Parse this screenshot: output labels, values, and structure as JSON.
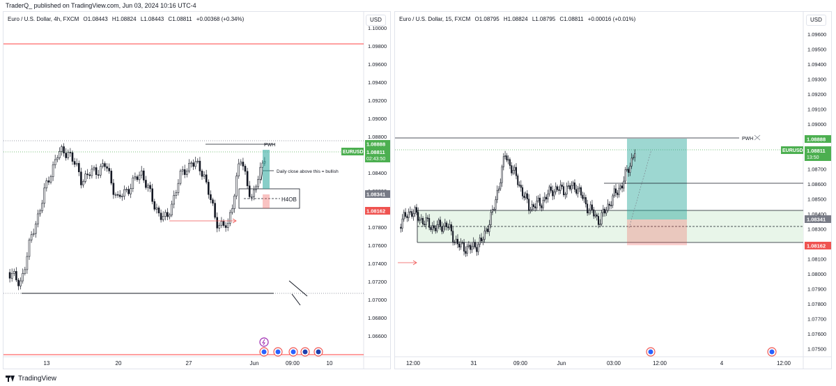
{
  "header": {
    "publisher_line": "TraderQ_ published on TradingView.com, Jun 03, 2024 10:16 UTC-4"
  },
  "footer": {
    "brand": "TradingView",
    "logo_icon": "tradingview-logo-icon"
  },
  "colors": {
    "up": "#26a69a",
    "down": "#ef5350",
    "candle": "#131722",
    "price_green": "#4caf50",
    "grey_label": "#787b86",
    "red_line": "#ff0000",
    "grid": "#e0e3eb",
    "box_fill": "#e8f5e9"
  },
  "left_chart": {
    "legend": {
      "symbol": "Euro / U.S. Dollar, 4h, FXCM",
      "open": "O1.08443",
      "high": "H1.08824",
      "low": "L1.08443",
      "close": "C1.08811",
      "change": "+0.00368 (+0.34%)"
    },
    "currency": "USD",
    "price_ticks": [
      "1.10000",
      "1.09800",
      "1.09600",
      "1.09400",
      "1.09200",
      "1.09000",
      "1.08800",
      "1.08600",
      "1.08400",
      "1.08200",
      "1.08000",
      "1.07800",
      "1.07600",
      "1.07400",
      "1.07200",
      "1.07000",
      "1.06800",
      "1.06600"
    ],
    "time_ticks": [
      "13",
      "20",
      "27",
      "Jun",
      "09:00",
      "10"
    ],
    "price_labels": {
      "pwh": "1.08888",
      "symbol_tag": "EURUSD",
      "current": "1.08811",
      "countdown": "02:43:50",
      "h4ob": "1.08341",
      "stop": "1.08162"
    },
    "annotations": {
      "pwh": "PWH",
      "daily_close": "Daily close above this = bullish",
      "h4ob": "H4OB"
    },
    "event_icons": [
      "lightning-icon",
      "us-flag-icon",
      "us-flag-icon",
      "us-flag-icon",
      "eu-flag-icon",
      "eu-flag-icon"
    ]
  },
  "right_chart": {
    "legend": {
      "symbol": "Euro / U.S. Dollar, 15, FXCM",
      "open": "O1.08795",
      "high": "H1.08824",
      "low": "L1.08795",
      "close": "C1.08811",
      "change": "+0.00016 (+0.01%)"
    },
    "currency": "USD",
    "price_ticks": [
      "1.09600",
      "1.09500",
      "1.09400",
      "1.09300",
      "1.09200",
      "1.09100",
      "1.09000",
      "1.08900",
      "1.08800",
      "1.08700",
      "1.08600",
      "1.08500",
      "1.08400",
      "1.08300",
      "1.08200",
      "1.08100",
      "1.08000",
      "1.07900",
      "1.07800",
      "1.07700",
      "1.07600",
      "1.07500"
    ],
    "time_ticks": [
      "12:00",
      "31",
      "09:00",
      "Jun",
      "03:00",
      "12:00",
      "4",
      "12:00"
    ],
    "price_labels": {
      "pwh": "1.08888",
      "symbol_tag": "EURUSD",
      "current": "1.08811",
      "countdown": "13:50",
      "h4ob": "1.08341",
      "stop": "1.08162"
    },
    "annotations": {
      "pwh": "PWH"
    },
    "event_icons": [
      "us-flag-icon",
      "us-flag-icon"
    ]
  }
}
